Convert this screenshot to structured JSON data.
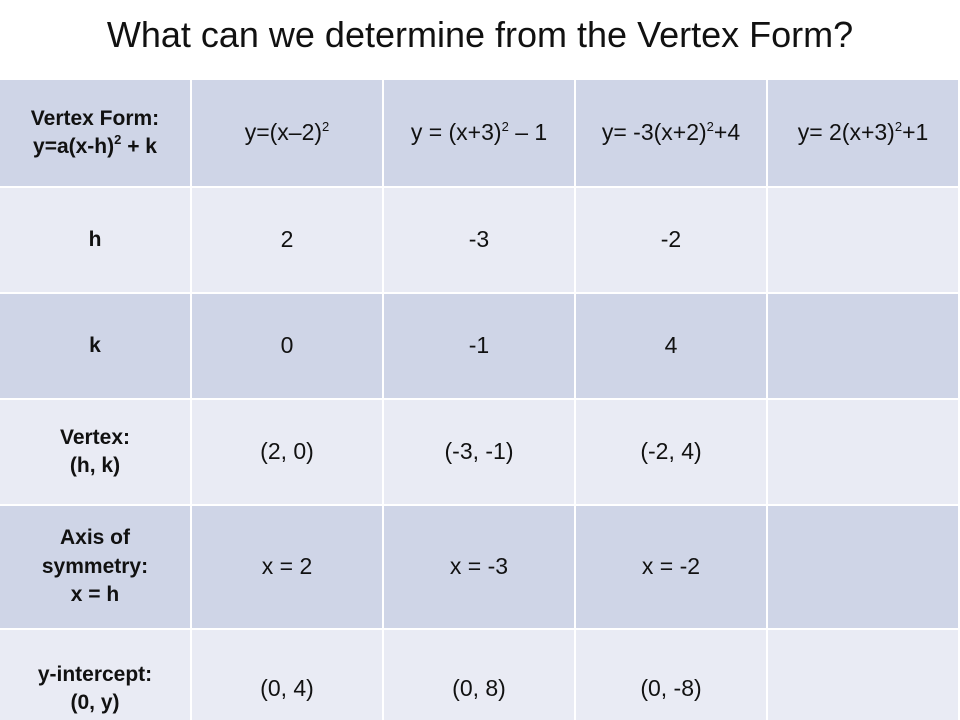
{
  "header": {
    "title": "What can we determine from the Vertex Form?"
  },
  "table": {
    "rows": [
      [
        [
          [
            "Vertex Form:"
          ],
          [
            "y=a(x-h)",
            "2",
            " + k"
          ]
        ],
        [
          [
            "y=(x–2)",
            "2"
          ]
        ],
        [
          [
            "y = (x+3)",
            "2",
            " – 1"
          ]
        ],
        [
          [
            "y= -3(x+2)",
            "2",
            "+4"
          ]
        ],
        [
          [
            "y= 2(x+3)",
            "2",
            "+1"
          ]
        ]
      ],
      [
        [
          [
            "h"
          ]
        ],
        [
          [
            "2"
          ]
        ],
        [
          [
            "-3"
          ]
        ],
        [
          [
            "-2"
          ]
        ],
        null
      ],
      [
        [
          [
            "k"
          ]
        ],
        [
          [
            "0"
          ]
        ],
        [
          [
            "-1"
          ]
        ],
        [
          [
            "4"
          ]
        ],
        null
      ],
      [
        [
          [
            "Vertex:"
          ],
          [
            "(h, k)"
          ]
        ],
        [
          [
            "(2, 0)"
          ]
        ],
        [
          [
            "(-3, -1)"
          ]
        ],
        [
          [
            "(-2, 4)"
          ]
        ],
        null
      ],
      [
        [
          [
            "Axis of"
          ],
          [
            "symmetry:"
          ],
          [
            "x = h"
          ]
        ],
        [
          [
            "x = 2"
          ]
        ],
        [
          [
            "x = -3"
          ]
        ],
        [
          [
            "x = -2"
          ]
        ],
        null
      ],
      [
        [
          [
            "y-intercept:"
          ],
          [
            "(0, y)"
          ]
        ],
        [
          [
            "(0, 4)"
          ]
        ],
        [
          [
            "(0, 8)"
          ]
        ],
        [
          [
            "(0, -8)"
          ]
        ],
        null
      ]
    ]
  }
}
